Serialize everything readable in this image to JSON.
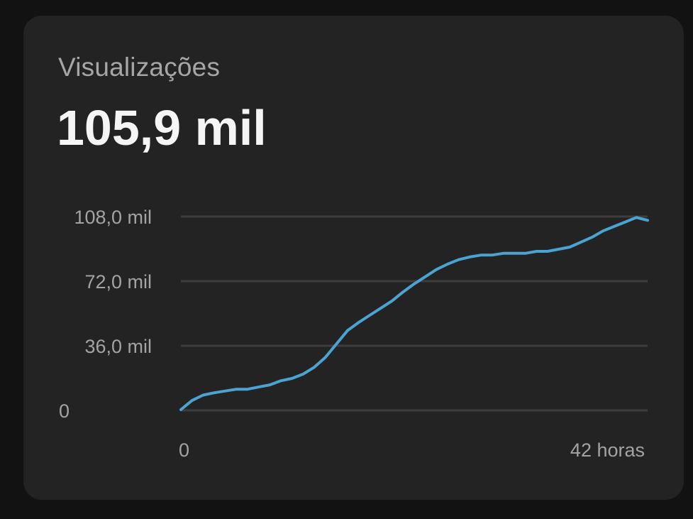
{
  "card": {
    "title": "Visualizações",
    "value": "105,9 mil"
  },
  "colors": {
    "background": "#121212",
    "card": "#232323",
    "line": "#4aa3d1",
    "grid": "#3d3d3d"
  },
  "chart_data": {
    "type": "line",
    "title": "",
    "xlabel": "",
    "ylabel": "",
    "grid": true,
    "ylim": [
      0,
      108000
    ],
    "xlim": [
      0,
      42
    ],
    "y_ticks": [
      {
        "value": 0,
        "label": "0"
      },
      {
        "value": 36000,
        "label": "36,0 mil"
      },
      {
        "value": 72000,
        "label": "72,0 mil"
      },
      {
        "value": 108000,
        "label": "108,0 mil"
      }
    ],
    "x_ticks": [
      {
        "value": 0,
        "label": "0"
      },
      {
        "value": 42,
        "label": "42 horas"
      }
    ],
    "series": [
      {
        "x": [
          0,
          1,
          2,
          3,
          4,
          5,
          6,
          7,
          8,
          9,
          10,
          11,
          12,
          13,
          14,
          15,
          16,
          17,
          18,
          19,
          20,
          21,
          22,
          23,
          24,
          25,
          26,
          27,
          28,
          29,
          30,
          31,
          32,
          33,
          34,
          35,
          36,
          37,
          38,
          39,
          40,
          41,
          42
        ],
        "y": [
          400,
          5500,
          8500,
          9800,
          10800,
          11800,
          11800,
          13000,
          14200,
          16500,
          17800,
          20200,
          24000,
          29500,
          37000,
          44500,
          49000,
          53000,
          57000,
          61000,
          66000,
          70500,
          74500,
          78500,
          81500,
          84000,
          85500,
          86500,
          86500,
          87500,
          87500,
          87500,
          88600,
          88600,
          89800,
          91000,
          93700,
          96500,
          100000,
          102500,
          105000,
          107500,
          105900
        ]
      }
    ]
  }
}
